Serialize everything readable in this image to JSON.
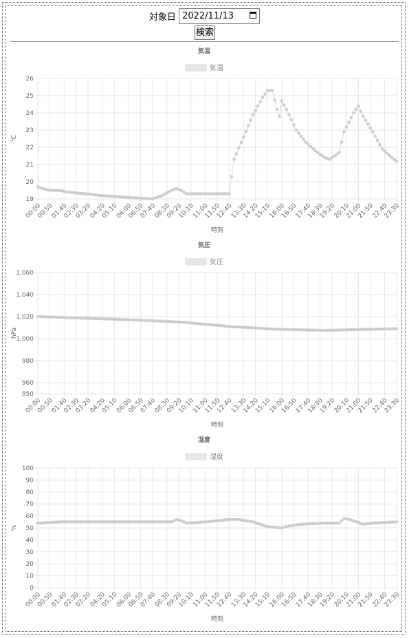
{
  "search": {
    "label": "対象日",
    "date_value": "2022/11/13",
    "button_label": "検索"
  },
  "colors": {
    "point": "#cccccc",
    "grid": "#e6e6e6",
    "legend_box": "#e6e6e6"
  },
  "chart_data": [
    {
      "type": "line",
      "title": "気温",
      "legend": [
        "気温"
      ],
      "xlabel": "時刻",
      "ylabel": "℃",
      "ylim": [
        19,
        26
      ],
      "yticks": [
        "26",
        "25",
        "24",
        "23",
        "22",
        "21",
        "20",
        "19"
      ],
      "x_tick_labels": [
        "00:00",
        "00:50",
        "01:40",
        "02:30",
        "03:20",
        "04:20",
        "05:10",
        "06:00",
        "06:50",
        "07:40",
        "08:30",
        "09:20",
        "10:10",
        "11:00",
        "11:50",
        "12:40",
        "13:30",
        "14:20",
        "15:10",
        "16:00",
        "16:50",
        "17:40",
        "18:30",
        "19:20",
        "20:10",
        "21:00",
        "21:50",
        "22:40",
        "23:30"
      ],
      "series": [
        {
          "name": "気温",
          "knots": [
            [
              0,
              19.7
            ],
            [
              2,
              19.6
            ],
            [
              5,
              19.5
            ],
            [
              9,
              19.5
            ],
            [
              12,
              19.4
            ],
            [
              20,
              19.3
            ],
            [
              26,
              19.2
            ],
            [
              36,
              19.1
            ],
            [
              48,
              19.0
            ],
            [
              52,
              19.2
            ],
            [
              56,
              19.5
            ],
            [
              58,
              19.6
            ],
            [
              60,
              19.5
            ],
            [
              62,
              19.3
            ],
            [
              80,
              19.3
            ],
            [
              82,
              21.3
            ],
            [
              86,
              22.6
            ],
            [
              90,
              23.9
            ],
            [
              94,
              24.9
            ],
            [
              96,
              25.3
            ],
            [
              98,
              25.3
            ],
            [
              100,
              24.2
            ],
            [
              101,
              23.8
            ],
            [
              102,
              24.7
            ],
            [
              104,
              24.2
            ],
            [
              108,
              23.0
            ],
            [
              112,
              22.3
            ],
            [
              116,
              21.8
            ],
            [
              120,
              21.4
            ],
            [
              122,
              21.3
            ],
            [
              126,
              21.7
            ],
            [
              128,
              22.9
            ],
            [
              132,
              24.0
            ],
            [
              134,
              24.4
            ],
            [
              136,
              23.8
            ],
            [
              140,
              22.9
            ],
            [
              144,
              21.9
            ],
            [
              148,
              21.4
            ],
            [
              150,
              21.2
            ]
          ]
        }
      ]
    },
    {
      "type": "line",
      "title": "気圧",
      "legend": [
        "気圧"
      ],
      "xlabel": "時刻",
      "ylabel": "hPa",
      "ylim": [
        950,
        1060
      ],
      "yticks": [
        "1,060",
        "1,040",
        "1,020",
        "1,000",
        "980",
        "960",
        "950"
      ],
      "x_tick_labels": [
        "00:00",
        "00:50",
        "01:40",
        "02:30",
        "03:20",
        "04:20",
        "05:10",
        "06:00",
        "06:50",
        "07:40",
        "08:30",
        "09:20",
        "10:10",
        "11:00",
        "11:50",
        "12:40",
        "13:30",
        "14:20",
        "15:10",
        "16:00",
        "16:50",
        "17:40",
        "18:30",
        "19:20",
        "20:10",
        "21:00",
        "21:50",
        "22:40",
        "23:30"
      ],
      "series": [
        {
          "name": "気圧",
          "knots": [
            [
              0,
              1020
            ],
            [
              20,
              1018.5
            ],
            [
              40,
              1017
            ],
            [
              60,
              1015
            ],
            [
              80,
              1011
            ],
            [
              100,
              1008.5
            ],
            [
              120,
              1007.5
            ],
            [
              150,
              1009
            ]
          ]
        }
      ]
    },
    {
      "type": "line",
      "title": "湿度",
      "legend": [
        "湿度"
      ],
      "xlabel": "時刻",
      "ylabel": "%",
      "ylim": [
        0,
        100
      ],
      "yticks": [
        "100",
        "90",
        "80",
        "70",
        "60",
        "50",
        "40",
        "30",
        "20",
        "10",
        "0"
      ],
      "x_tick_labels": [
        "00:00",
        "00:50",
        "01:40",
        "02:30",
        "03:20",
        "04:20",
        "05:10",
        "06:00",
        "06:50",
        "07:40",
        "08:30",
        "09:20",
        "10:10",
        "11:00",
        "11:50",
        "12:40",
        "13:30",
        "14:20",
        "15:10",
        "16:00",
        "16:50",
        "17:40",
        "18:30",
        "19:20",
        "20:10",
        "21:00",
        "21:50",
        "22:40",
        "23:30"
      ],
      "series": [
        {
          "name": "湿度",
          "knots": [
            [
              0,
              54
            ],
            [
              10,
              55
            ],
            [
              30,
              55
            ],
            [
              56,
              55
            ],
            [
              58,
              57
            ],
            [
              60,
              56
            ],
            [
              62,
              54
            ],
            [
              70,
              55
            ],
            [
              80,
              57
            ],
            [
              84,
              57
            ],
            [
              90,
              55
            ],
            [
              96,
              51
            ],
            [
              102,
              50
            ],
            [
              106,
              52
            ],
            [
              110,
              53
            ],
            [
              120,
              54
            ],
            [
              126,
              54
            ],
            [
              128,
              58
            ],
            [
              132,
              56
            ],
            [
              136,
              53
            ],
            [
              140,
              54
            ],
            [
              150,
              55
            ]
          ]
        }
      ]
    }
  ]
}
